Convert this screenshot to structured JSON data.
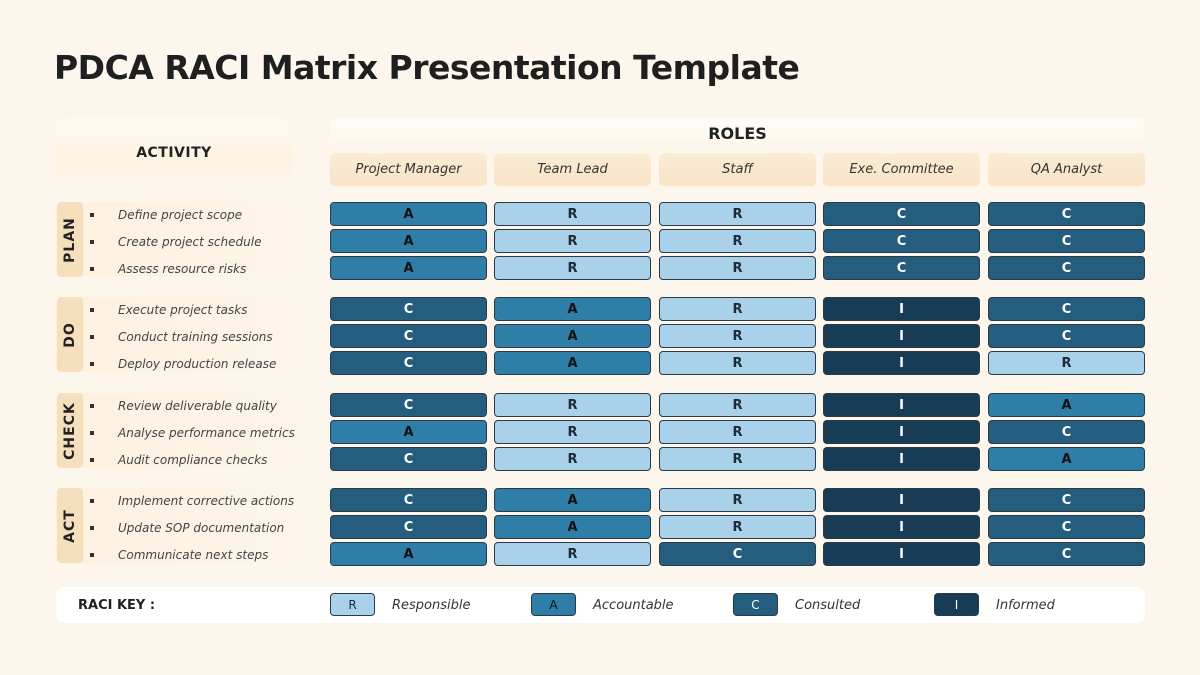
{
  "title": "PDCA RACI Matrix Presentation Template",
  "activity_header": "ACTIVITY",
  "roles_header": "ROLES",
  "roles": [
    "Project Manager",
    "Team Lead",
    "Staff",
    "Exe. Committee",
    "QA Analyst"
  ],
  "phases": [
    {
      "name": "PLAN",
      "rows": [
        {
          "activity": "Define project scope",
          "values": [
            "A",
            "R",
            "R",
            "C",
            "C"
          ]
        },
        {
          "activity": "Create project schedule",
          "values": [
            "A",
            "R",
            "R",
            "C",
            "C"
          ]
        },
        {
          "activity": "Assess resource risks",
          "values": [
            "A",
            "R",
            "R",
            "C",
            "C"
          ]
        }
      ]
    },
    {
      "name": "DO",
      "rows": [
        {
          "activity": "Execute project tasks",
          "values": [
            "C",
            "A",
            "R",
            "I",
            "C"
          ]
        },
        {
          "activity": "Conduct training sessions",
          "values": [
            "C",
            "A",
            "R",
            "I",
            "C"
          ]
        },
        {
          "activity": "Deploy production release",
          "values": [
            "C",
            "A",
            "R",
            "I",
            "R"
          ]
        }
      ]
    },
    {
      "name": "CHECK",
      "rows": [
        {
          "activity": "Review deliverable quality",
          "values": [
            "C",
            "R",
            "R",
            "I",
            "A"
          ]
        },
        {
          "activity": "Analyse performance metrics",
          "values": [
            "A",
            "R",
            "R",
            "I",
            "C"
          ]
        },
        {
          "activity": "Audit compliance checks",
          "values": [
            "C",
            "R",
            "R",
            "I",
            "A"
          ]
        }
      ]
    },
    {
      "name": "ACT",
      "rows": [
        {
          "activity": "Implement corrective actions",
          "values": [
            "C",
            "A",
            "R",
            "I",
            "C"
          ]
        },
        {
          "activity": "Update SOP documentation",
          "values": [
            "C",
            "A",
            "R",
            "I",
            "C"
          ]
        },
        {
          "activity": "Communicate next steps",
          "values": [
            "A",
            "R",
            "C",
            "I",
            "C"
          ]
        }
      ]
    }
  ],
  "key": {
    "title": "RACI KEY :",
    "items": [
      {
        "letter": "R",
        "label": "Responsible"
      },
      {
        "letter": "A",
        "label": "Accountable"
      },
      {
        "letter": "C",
        "label": "Consulted"
      },
      {
        "letter": "I",
        "label": "Informed"
      }
    ]
  },
  "colors": {
    "R": "#a9d2ea",
    "A": "#2f7ea8",
    "C": "#255d7e",
    "I": "#183c55",
    "background": "#fdf6ec",
    "phase_label": "#f6dfbc",
    "role_header": "#fbecd5"
  }
}
